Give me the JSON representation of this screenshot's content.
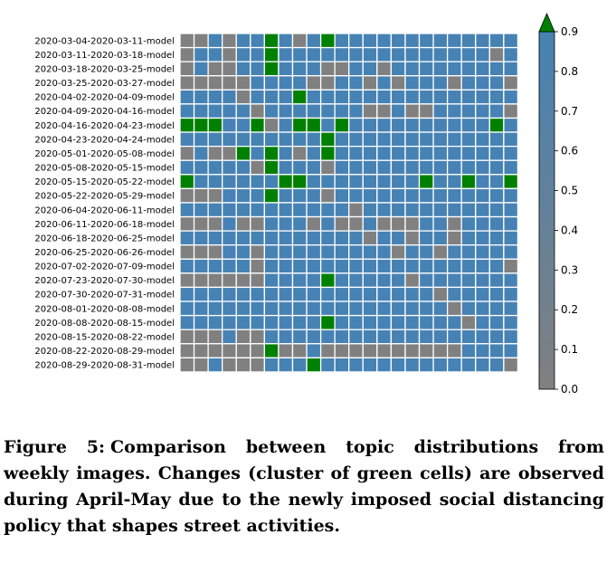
{
  "caption": {
    "label": "Figure 5:",
    "text": "Comparison between topic distributions from weekly images. Changes (cluster of green cells) are observed during April-May due to the newly imposed social distancing policy that shapes street activities."
  },
  "colors": {
    "gray": "#808080",
    "blue": "#4682b4",
    "green": "#008000",
    "grid": "#ffffff"
  },
  "chart_data": {
    "type": "heatmap",
    "rows": [
      "2020-03-04-2020-03-11-model",
      "2020-03-11-2020-03-18-model",
      "2020-03-18-2020-03-25-model",
      "2020-03-25-2020-03-27-model",
      "2020-04-02-2020-04-09-model",
      "2020-04-09-2020-04-16-model",
      "2020-04-16-2020-04-23-model",
      "2020-04-23-2020-04-24-model",
      "2020-05-01-2020-05-08-model",
      "2020-05-08-2020-05-15-model",
      "2020-05-15-2020-05-22-model",
      "2020-05-22-2020-05-29-model",
      "2020-06-04-2020-06-11-model",
      "2020-06-11-2020-06-18-model",
      "2020-06-18-2020-06-25-model",
      "2020-06-25-2020-06-26-model",
      "2020-07-02-2020-07-09-model",
      "2020-07-23-2020-07-30-model",
      "2020-07-30-2020-07-31-model",
      "2020-08-01-2020-08-08-model",
      "2020-08-08-2020-08-15-model",
      "2020-08-15-2020-08-22-model",
      "2020-08-22-2020-08-29-model",
      "2020-08-29-2020-08-31-model"
    ],
    "n_columns": 24,
    "color_levels": {
      "gray": 0.0,
      "blue": 0.9,
      "green": 1.0
    },
    "grid": [
      "GGBGBBLBGBLBBBBBBBBBBBBB",
      "GBBGBBLBBBBBBBBBBBBBBBGB",
      "GBGGBBLBBBGGBBGBBBBBBBBB",
      "GGGGGBBBBGGBBGBGBBBGBBBG",
      "BBBBGBBBLBBBBBBBBBBBBBBB",
      "BBBBBGBBBBBBBGGBGGBBBBBG",
      "LLLBBLGBLLBLBBBBBBBBBBLB",
      "BBBBBBBBBBLBBBBBBBBBBBBB",
      "GBGGLBLBGBLBBBBBBBBBBBBB",
      "BBBBBGLBBBGBBBBBBBBBBBBB",
      "LBBBBBBLLBBBBBBBBLBBLBBL",
      "GGGBBBLBBBGBBBBBBBBBBBBB",
      "BBBBBBBBBBBBGBBBBBBBBBBB",
      "GGGBGGBBBGBGGBGGGBBGBBBB",
      "BBBBBBBBBBBBBGBBGBBGBBBB",
      "GGGBBGBBBBBBBBBGBBGBBBBB",
      "BBBBBGBBBBBBBBBBBBBBBBBG",
      "GGGGGGBBBBLBBBBBGBBBBBBB",
      "BBBBBBBBBBBBBBBBBBGBBBBB",
      "BBBBBBBBBBBBBBBBBBBGBBBB",
      "BBBBBBBBBBLBBBBBBBBBGBBB",
      "GGGBGGBBBBBBBBBBBBBBBBBB",
      "GGGGGGLGGBGGGGGGGGGGBBBB",
      "GGBGGGBBBLBBBBBBBBBBBBBG"
    ],
    "colorbar": {
      "ticks": [
        0.0,
        0.1,
        0.2,
        0.3,
        0.4,
        0.5,
        0.6,
        0.7,
        0.8,
        0.9
      ],
      "tick_labels": [
        "0.0",
        "0.1",
        "0.2",
        "0.3",
        "0.4",
        "0.5",
        "0.6",
        "0.7",
        "0.8",
        "0.9"
      ],
      "range": [
        0.0,
        0.9
      ],
      "extend": "max"
    }
  }
}
